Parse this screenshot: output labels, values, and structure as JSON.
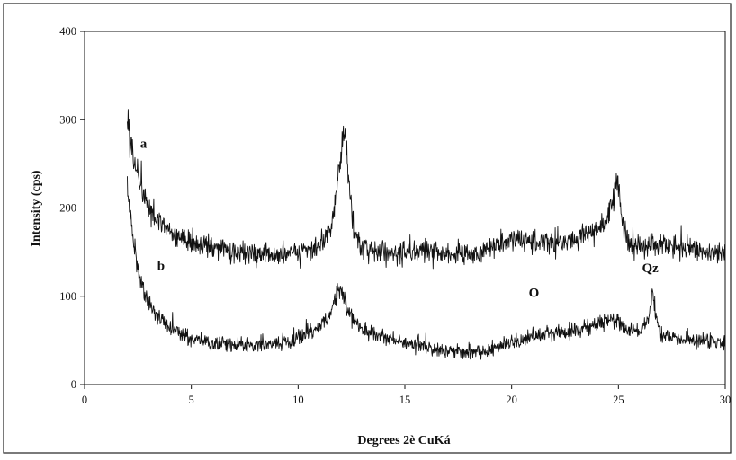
{
  "chart_data": {
    "type": "line",
    "title": "",
    "xlabel": "Degrees 2è CuKá",
    "ylabel": "Intensity (cps)",
    "xlim": [
      0,
      30
    ],
    "ylim": [
      0,
      400
    ],
    "x_ticks": [
      0,
      5,
      10,
      15,
      20,
      25,
      30
    ],
    "y_ticks": [
      0,
      100,
      200,
      300,
      400
    ],
    "grid": false,
    "legend": "none",
    "series": [
      {
        "name": "a",
        "x": [
          2,
          2.2,
          2.5,
          2.8,
          3.2,
          3.6,
          4,
          4.5,
          5,
          6,
          7,
          8,
          9,
          10,
          11,
          11.5,
          11.8,
          12,
          12.15,
          12.25,
          12.4,
          12.6,
          13,
          14,
          15,
          16,
          17,
          18,
          19,
          20,
          21,
          22,
          23,
          24,
          24.5,
          24.8,
          24.9,
          25,
          25.2,
          25.5,
          26,
          27,
          28,
          29,
          30
        ],
        "y": [
          315,
          270,
          235,
          210,
          192,
          180,
          172,
          165,
          160,
          155,
          150,
          147,
          146,
          148,
          158,
          175,
          215,
          265,
          290,
          270,
          220,
          175,
          155,
          150,
          150,
          150,
          148,
          148,
          155,
          165,
          162,
          160,
          165,
          175,
          190,
          215,
          235,
          225,
          180,
          160,
          155,
          158,
          155,
          152,
          148
        ]
      },
      {
        "name": "b",
        "x": [
          2,
          2.2,
          2.5,
          2.8,
          3.2,
          3.6,
          4,
          4.5,
          5,
          6,
          7,
          8,
          9,
          10,
          10.5,
          11,
          11.5,
          11.8,
          12,
          12.2,
          12.5,
          13,
          14,
          15,
          16,
          17,
          18,
          19,
          20,
          21,
          22,
          23,
          24,
          24.5,
          25,
          25.5,
          26,
          26.4,
          26.6,
          26.8,
          27,
          28,
          29,
          30
        ],
        "y": [
          225,
          175,
          130,
          105,
          85,
          72,
          65,
          58,
          52,
          48,
          45,
          45,
          47,
          52,
          58,
          65,
          80,
          100,
          110,
          95,
          75,
          62,
          55,
          48,
          42,
          38,
          35,
          38,
          48,
          55,
          58,
          62,
          68,
          75,
          70,
          60,
          60,
          75,
          110,
          70,
          55,
          52,
          50,
          48
        ]
      }
    ],
    "annotations": [
      {
        "text": "a",
        "x": 2.6,
        "y": 268
      },
      {
        "text": "b",
        "x": 3.4,
        "y": 130
      },
      {
        "text": "O",
        "x": 20.8,
        "y": 99
      },
      {
        "text": "Qz",
        "x": 26.1,
        "y": 127
      }
    ]
  }
}
